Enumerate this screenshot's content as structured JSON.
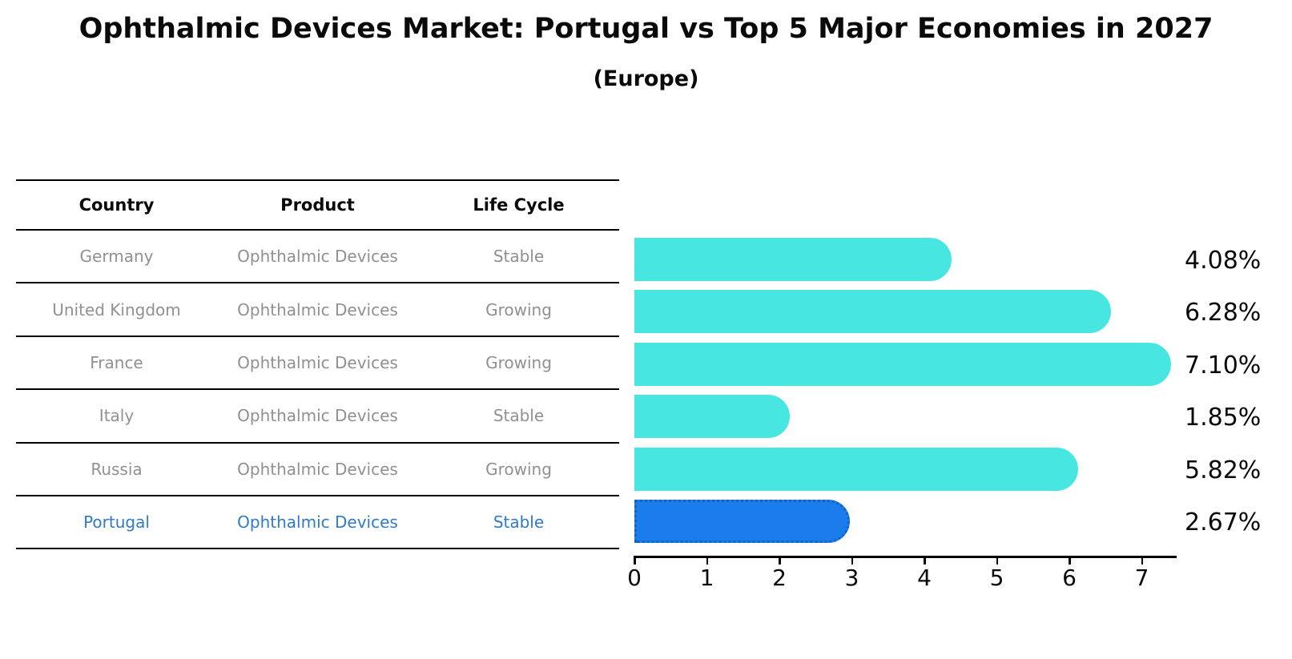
{
  "header": {
    "title": "Ophthalmic Devices Market: Portugal vs Top 5 Major Economies in 2027",
    "subtitle": "(Europe)"
  },
  "table": {
    "headers": [
      "Country",
      "Product",
      "Life Cycle"
    ],
    "rows": [
      {
        "country": "Germany",
        "product": "Ophthalmic Devices",
        "life_cycle": "Stable",
        "highlight": false
      },
      {
        "country": "United Kingdom",
        "product": "Ophthalmic Devices",
        "life_cycle": "Growing",
        "highlight": false
      },
      {
        "country": "France",
        "product": "Ophthalmic Devices",
        "life_cycle": "Growing",
        "highlight": false
      },
      {
        "country": "Italy",
        "product": "Ophthalmic Devices",
        "life_cycle": "Stable",
        "highlight": false
      },
      {
        "country": "Russia",
        "product": "Ophthalmic Devices",
        "life_cycle": "Growing",
        "highlight": false
      },
      {
        "country": "Portugal",
        "product": "Ophthalmic Devices",
        "life_cycle": "Stable",
        "highlight": true
      }
    ]
  },
  "chart_data": {
    "type": "bar",
    "orientation": "horizontal",
    "title": "Ophthalmic Devices Market: Portugal vs Top 5 Major Economies in 2027",
    "subtitle": "(Europe)",
    "categories": [
      "Germany",
      "United Kingdom",
      "France",
      "Italy",
      "Russia",
      "Portugal"
    ],
    "values": [
      4.08,
      6.28,
      7.1,
      1.85,
      5.82,
      2.67
    ],
    "value_labels": [
      "4.08%",
      "6.28%",
      "7.10%",
      "1.85%",
      "5.82%",
      "2.67%"
    ],
    "xlabel": "",
    "ylabel": "",
    "xlim": [
      0,
      7.45
    ],
    "xticks": [
      0,
      1,
      2,
      3,
      4,
      5,
      6,
      7
    ],
    "grid": false,
    "legend": false,
    "highlight_index": 5,
    "bar_style": "rounded-right-cap, highlight bar has dotted outline"
  },
  "colors": {
    "background": "#FFFFFF",
    "bar_turquoise": "#48E6E1",
    "bar_highlight_blue": "#1B7CEB",
    "bar_highlight_border": "#1565C0",
    "table_text_gray": "#909090",
    "table_highlight_text_blue": "#2F7BC5",
    "text_black": "#0A0A0A",
    "rule_black": "#000000"
  }
}
